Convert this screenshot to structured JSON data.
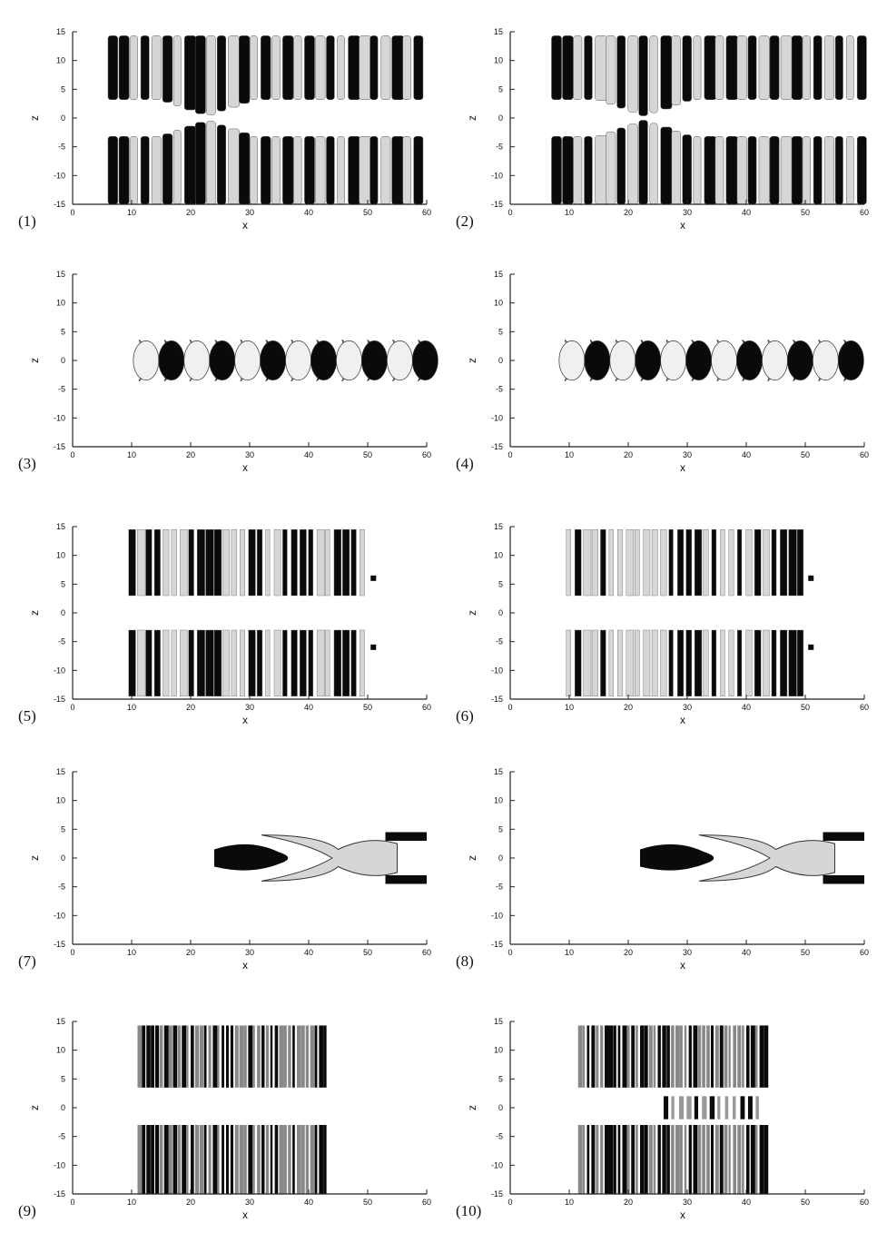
{
  "figure": {
    "panels": [
      {
        "label": "(1)",
        "xlabel": "x",
        "ylabel": "z",
        "pattern": "full",
        "xticks": [
          "0",
          "10",
          "20",
          "30",
          "40",
          "50",
          "60"
        ],
        "yticks": [
          "15",
          "10",
          "5",
          "0",
          "-5",
          "-10",
          "-15"
        ]
      },
      {
        "label": "(2)",
        "xlabel": "x",
        "ylabel": "z",
        "pattern": "full",
        "xticks": [
          "0",
          "10",
          "20",
          "30",
          "40",
          "50",
          "60"
        ],
        "yticks": [
          "15",
          "10",
          "5",
          "0",
          "-5",
          "-10",
          "-15"
        ]
      },
      {
        "label": "(3)",
        "xlabel": "x",
        "ylabel": "z",
        "pattern": "crescents",
        "xticks": [
          "0",
          "10",
          "20",
          "30",
          "40",
          "50",
          "60"
        ],
        "yticks": [
          "15",
          "10",
          "5",
          "0",
          "-5",
          "-10",
          "-15"
        ]
      },
      {
        "label": "(4)",
        "xlabel": "x",
        "ylabel": "z",
        "pattern": "crescents",
        "xticks": [
          "0",
          "10",
          "20",
          "30",
          "40",
          "50",
          "60"
        ],
        "yticks": [
          "15",
          "10",
          "5",
          "0",
          "-5",
          "-10",
          "-15"
        ]
      },
      {
        "label": "(5)",
        "xlabel": "x",
        "ylabel": "z",
        "pattern": "bands",
        "xticks": [
          "0",
          "10",
          "20",
          "30",
          "40",
          "50",
          "60"
        ],
        "yticks": [
          "15",
          "10",
          "5",
          "0",
          "-5",
          "-10",
          "-15"
        ]
      },
      {
        "label": "(6)",
        "xlabel": "x",
        "ylabel": "z",
        "pattern": "bands",
        "xticks": [
          "0",
          "10",
          "20",
          "30",
          "40",
          "50",
          "60"
        ],
        "yticks": [
          "15",
          "10",
          "5",
          "0",
          "-5",
          "-10",
          "-15"
        ]
      },
      {
        "label": "(7)",
        "xlabel": "x",
        "ylabel": "z",
        "pattern": "arrow",
        "xticks": [
          "0",
          "10",
          "20",
          "30",
          "40",
          "50",
          "60"
        ],
        "yticks": [
          "15",
          "10",
          "5",
          "0",
          "-5",
          "-10",
          "-15"
        ]
      },
      {
        "label": "(8)",
        "xlabel": "x",
        "ylabel": "z",
        "pattern": "arrow",
        "xticks": [
          "0",
          "10",
          "20",
          "30",
          "40",
          "50",
          "60"
        ],
        "yticks": [
          "15",
          "10",
          "5",
          "0",
          "-5",
          "-10",
          "-15"
        ]
      },
      {
        "label": "(9)",
        "xlabel": "x",
        "ylabel": "z",
        "pattern": "dense",
        "xticks": [
          "0",
          "10",
          "20",
          "30",
          "40",
          "50",
          "60"
        ],
        "yticks": [
          "15",
          "10",
          "5",
          "0",
          "-5",
          "-10",
          "-15"
        ]
      },
      {
        "label": "(10)",
        "xlabel": "x",
        "ylabel": "z",
        "pattern": "dense-center",
        "xticks": [
          "0",
          "10",
          "20",
          "30",
          "40",
          "50",
          "60"
        ],
        "yticks": [
          "15",
          "10",
          "5",
          "0",
          "-5",
          "-10",
          "-15"
        ]
      }
    ],
    "colors": {
      "dark": "#0a0a0a",
      "light": "#d6d6d6",
      "axis": "#222222"
    }
  }
}
